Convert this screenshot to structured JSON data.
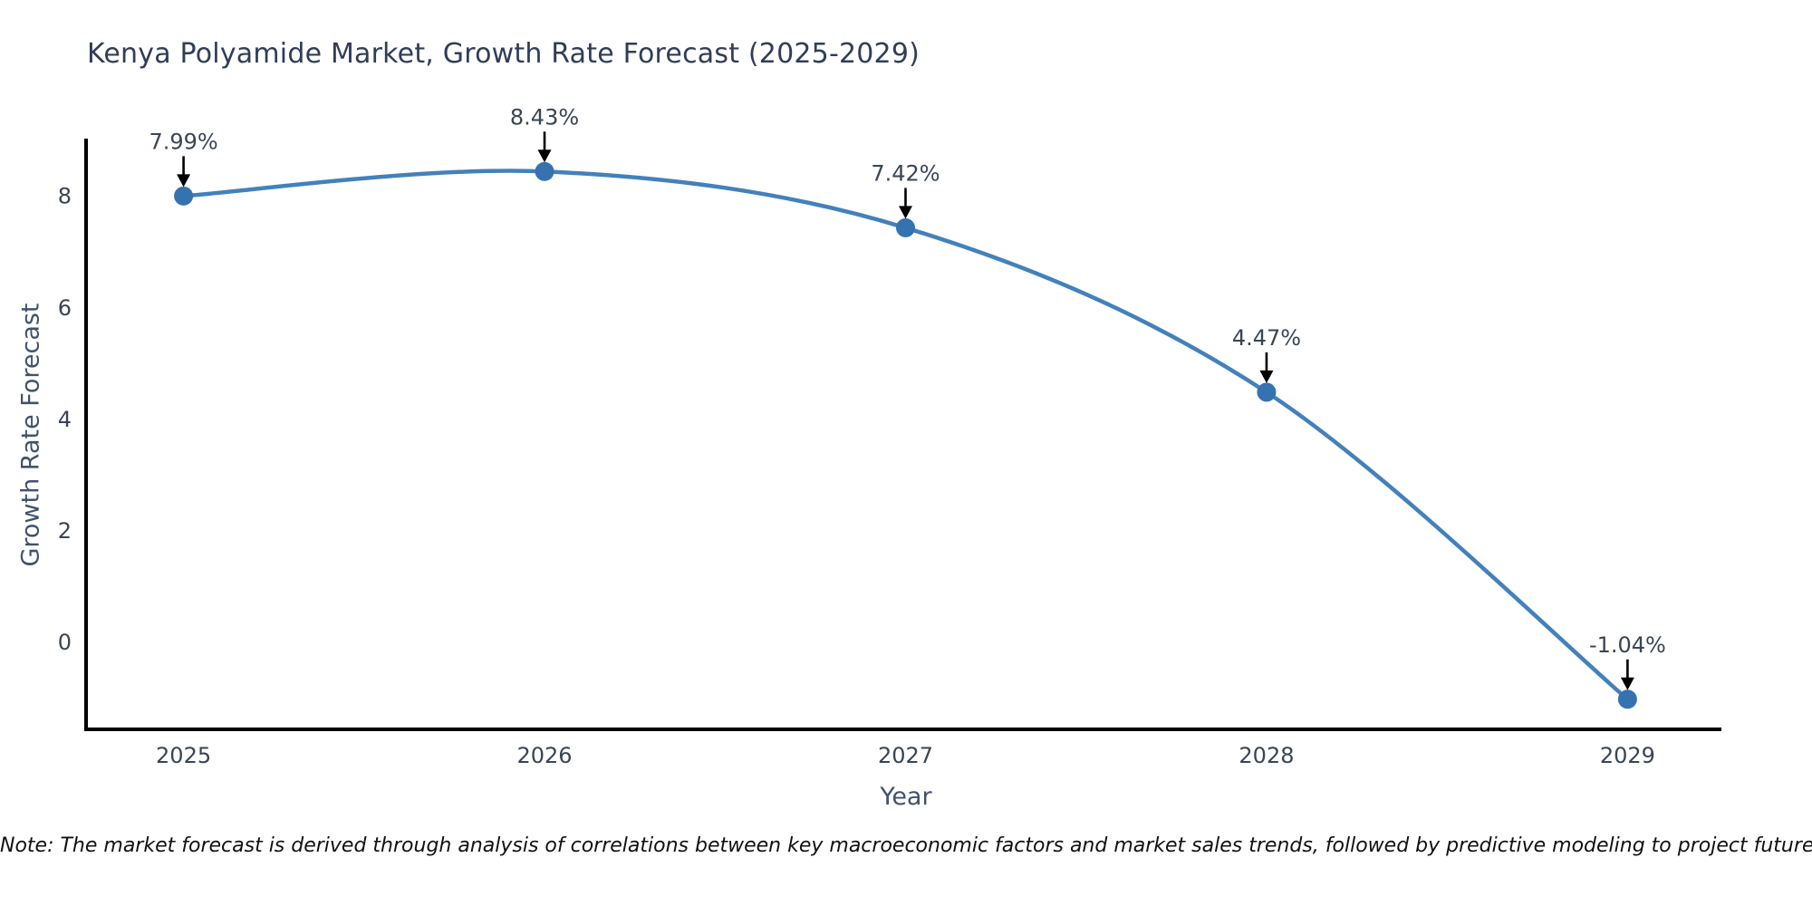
{
  "title": {
    "text": "Kenya Polyamide Market, Growth Rate Forecast (2025-2029)"
  },
  "note": {
    "text": "Note: The market forecast is derived through analysis of correlations between key macroeconomic factors and market sales trends, followed by predictive modeling to project future sales."
  },
  "colors": {
    "line": "#4381bb",
    "marker": "#3572b0",
    "title_text": "#313d58",
    "axis_title_text": "#42516d",
    "tick_text": "#3a4454",
    "annotation_text": "#3a4454",
    "arrow": "#000000",
    "spine": "#000000",
    "background": "#ffffff"
  },
  "chart_data": {
    "type": "line",
    "line_shape": "spline",
    "markers": true,
    "grid": false,
    "legend": false,
    "title": "Kenya Polyamide Market, Growth Rate Forecast (2025-2029)",
    "xlabel": "Year",
    "ylabel": "Growth Rate Forecast",
    "x": [
      2025,
      2026,
      2027,
      2028,
      2029
    ],
    "values": [
      7.99,
      8.43,
      7.42,
      4.47,
      -1.04
    ],
    "point_labels": [
      "7.99%",
      "8.43%",
      "7.42%",
      "4.47%",
      "-1.04%"
    ],
    "xticks": [
      "2025",
      "2026",
      "2027",
      "2028",
      "2029"
    ],
    "yticks": [
      0,
      2,
      4,
      6,
      8
    ],
    "xlim": [
      2024.73,
      2029.26
    ],
    "ylim": [
      -1.58,
      9.02
    ]
  }
}
